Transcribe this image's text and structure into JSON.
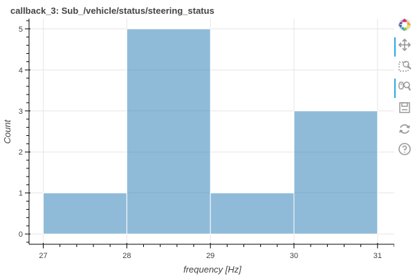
{
  "title": "callback_3: Sub_/vehicle/status/steering_status",
  "colors": {
    "bar_fill": "#1f77b4",
    "bar_alpha": 0.5,
    "bar_line": "#ffffff",
    "grid": "#e5e5e5",
    "axis": "#000000",
    "text": "#444444",
    "tool_active": "#26aae1",
    "tool_gray": "#999999"
  },
  "toolbar": {
    "items": [
      {
        "name": "bokeh-logo-icon",
        "active": false
      },
      {
        "name": "pan-icon",
        "active": true
      },
      {
        "name": "box-zoom-icon",
        "active": false
      },
      {
        "name": "wheel-zoom-icon",
        "active": true
      },
      {
        "name": "save-icon",
        "active": false
      },
      {
        "name": "reset-icon",
        "active": false
      },
      {
        "name": "help-icon",
        "active": false
      }
    ]
  },
  "chart_data": {
    "type": "bar",
    "title": "callback_3: Sub_/vehicle/status/steering_status",
    "xlabel": "frequency [Hz]",
    "ylabel": "Count",
    "bins": [
      {
        "left": 27,
        "right": 28,
        "count": 1
      },
      {
        "left": 28,
        "right": 29,
        "count": 5
      },
      {
        "left": 29,
        "right": 30,
        "count": 1
      },
      {
        "left": 30,
        "right": 31,
        "count": 3
      }
    ],
    "xlim": [
      26.83,
      31.2
    ],
    "ylim": [
      -0.25,
      5.25
    ],
    "xticks": [
      "27",
      "28",
      "29",
      "30",
      "31"
    ],
    "yticks": [
      "0",
      "1",
      "2",
      "3",
      "4",
      "5"
    ],
    "grid": true,
    "legend": "none"
  }
}
